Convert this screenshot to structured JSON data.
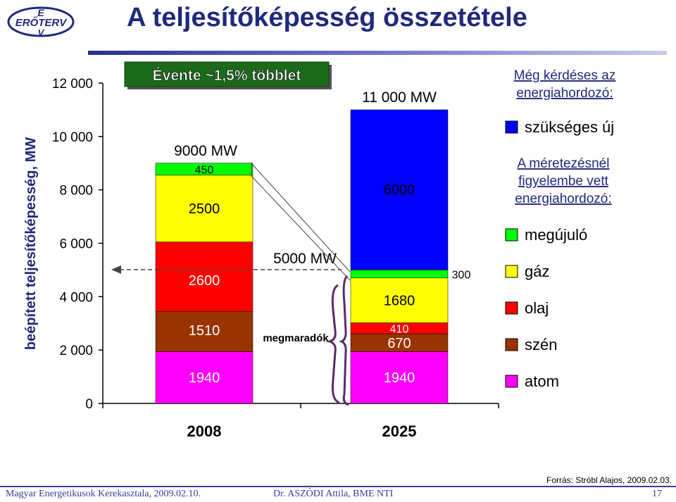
{
  "header": {
    "title": "A teljesítőképesség összetétele",
    "logo_line1": "E",
    "logo_line2": "ERŐTERV",
    "logo_line3": "V"
  },
  "chart_data": {
    "type": "bar",
    "stacked": true,
    "ylabel": "beépített teljesítőképesség, MW",
    "ylim": [
      0,
      12000
    ],
    "yticks": [
      "0",
      "2 000",
      "4 000",
      "6 000",
      "8 000",
      "10 000",
      "12 000"
    ],
    "ytick_values": [
      0,
      2000,
      4000,
      6000,
      8000,
      10000,
      12000
    ],
    "categories": [
      "2008",
      "2025"
    ],
    "series": [
      {
        "name": "atom",
        "color": "#ff00ff",
        "values": [
          1940,
          1940
        ]
      },
      {
        "name": "szén",
        "color": "#993300",
        "values": [
          1510,
          670
        ]
      },
      {
        "name": "olaj",
        "color": "#ff0000",
        "values": [
          2600,
          410
        ]
      },
      {
        "name": "gáz",
        "color": "#ffff00",
        "values": [
          2500,
          1680
        ]
      },
      {
        "name": "megújuló",
        "color": "#00ff00",
        "values": [
          450,
          300
        ]
      },
      {
        "name": "szükséges új",
        "color": "#0000ff",
        "values": [
          0,
          6000
        ]
      }
    ],
    "segment_labels": [
      [
        "1940",
        "1510",
        "2600",
        "2500",
        "450",
        ""
      ],
      [
        "1940",
        "670",
        "410",
        "1680",
        "300",
        "6000"
      ]
    ],
    "totals": [
      "9000 MW",
      "11 000 MW"
    ],
    "annotations": {
      "growth_box": "Évente ~1,5% többlet",
      "remaining_total": "5000 MW",
      "remaining_label": "megmaradók"
    },
    "legend_headers": {
      "question": "Még kérdéses az energiahordozó:",
      "considered": "A méretezésnél figyelembe vett energiahordozó:"
    },
    "legend_placement": "right"
  },
  "footer": {
    "source": "Forrás: Stróbl Alajos, 2009.02.03.",
    "left": "Magyar Energetikusok Kerekasztala, 2009.02.10.",
    "middle": "Dr. ASZÓDI Attila, BME NTI",
    "page": "17"
  }
}
